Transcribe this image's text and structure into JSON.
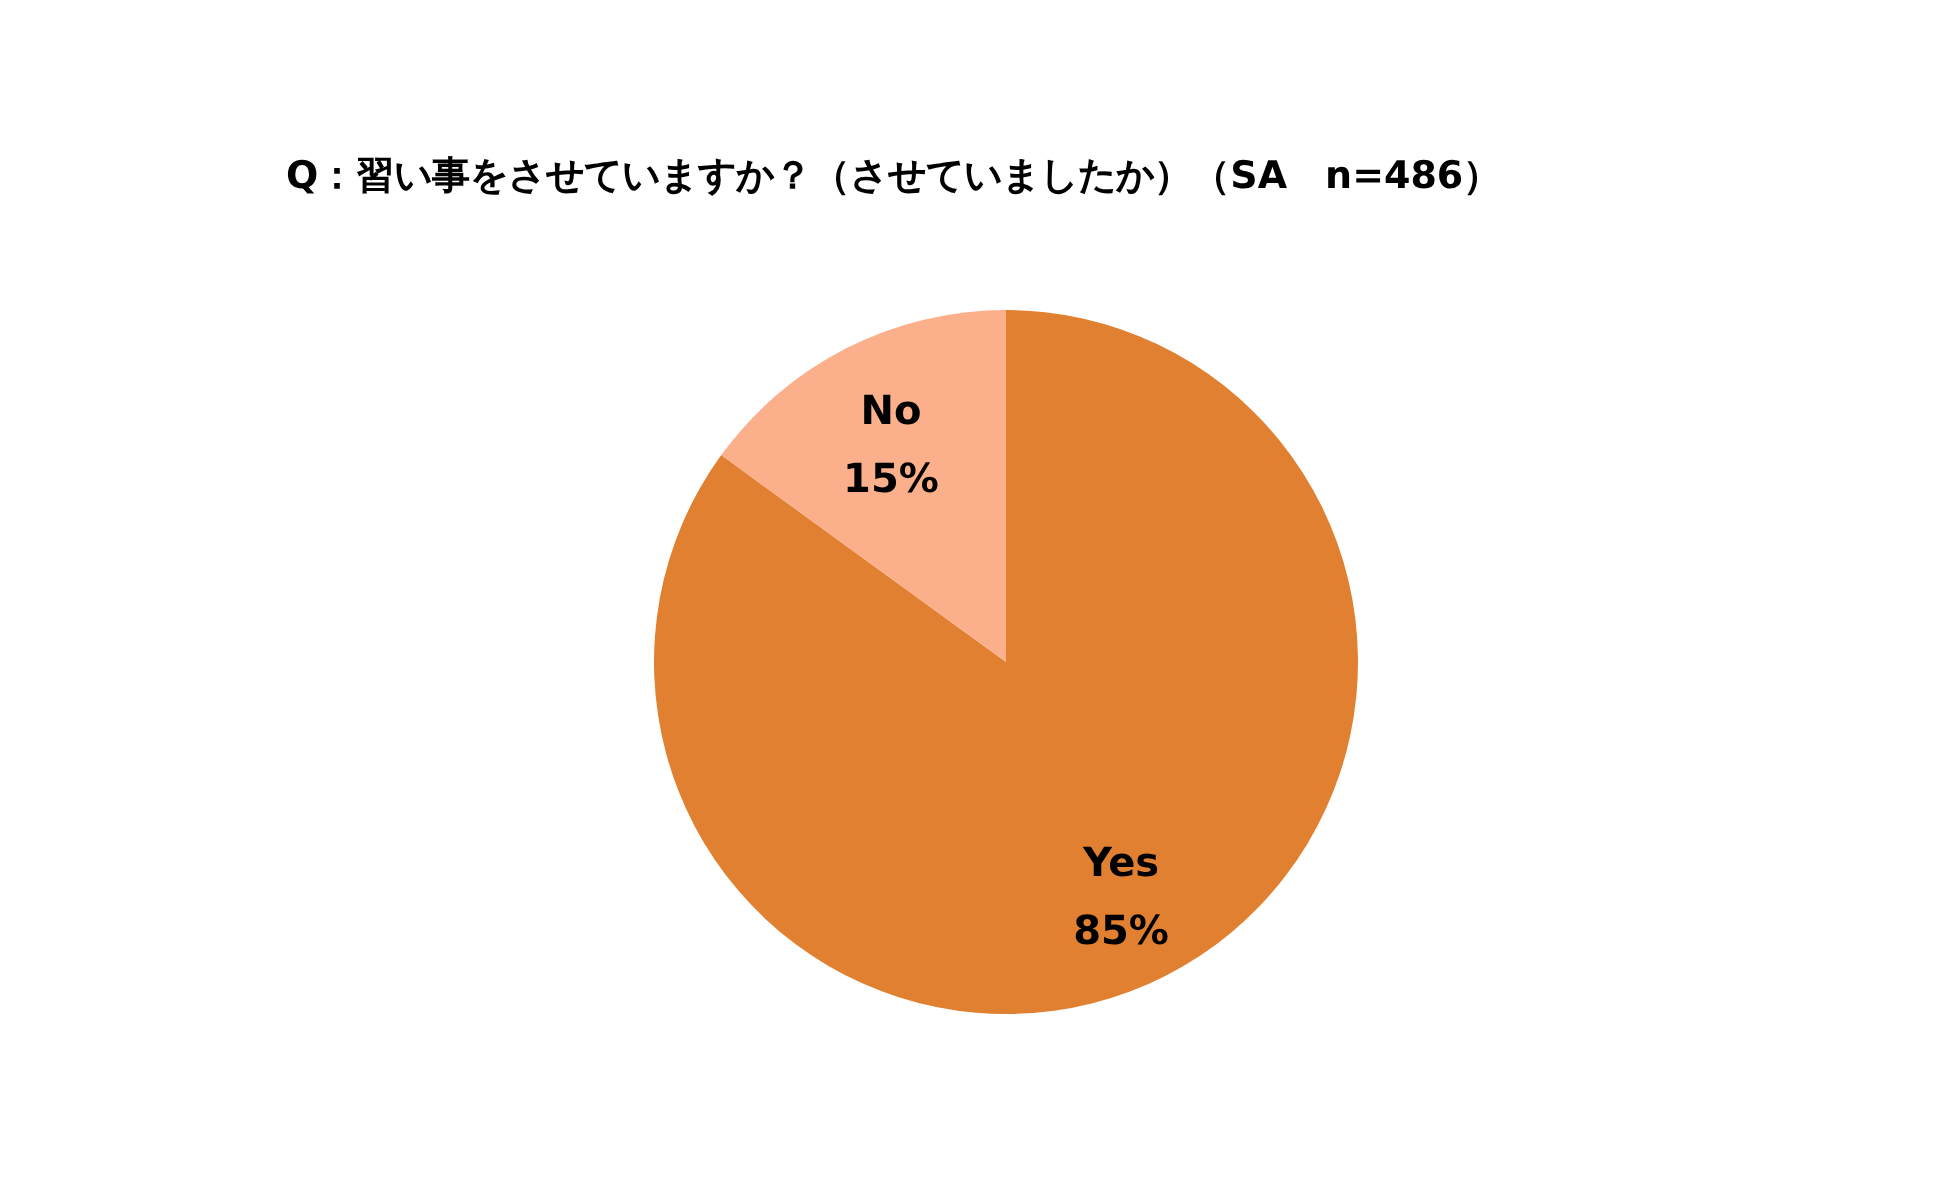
{
  "chart_data": {
    "type": "pie",
    "title": "Q：習い事をさせていますか？（させていましたか）（SA　n=486）",
    "categories": [
      "Yes",
      "No"
    ],
    "values": [
      85,
      15
    ],
    "colors": [
      "#e08030",
      "#fbb08b"
    ],
    "value_labels": [
      "85%",
      "15%"
    ],
    "legend": false
  }
}
